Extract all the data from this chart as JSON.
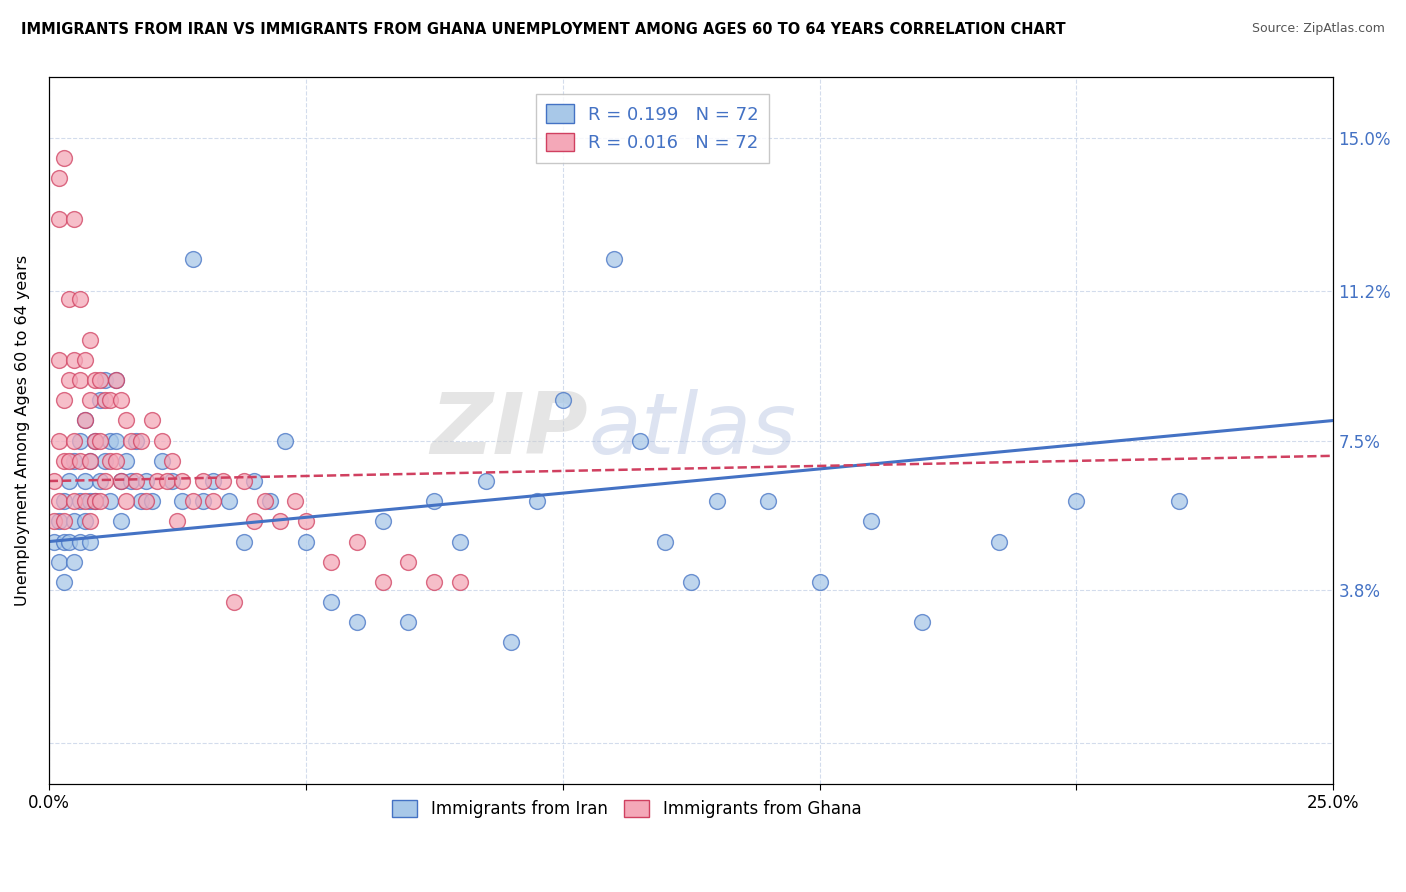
{
  "title": "IMMIGRANTS FROM IRAN VS IMMIGRANTS FROM GHANA UNEMPLOYMENT AMONG AGES 60 TO 64 YEARS CORRELATION CHART",
  "source": "Source: ZipAtlas.com",
  "ylabel": "Unemployment Among Ages 60 to 64 years",
  "xlim": [
    0.0,
    0.25
  ],
  "ylim": [
    -0.01,
    0.165
  ],
  "ytick_positions": [
    0.0,
    0.038,
    0.075,
    0.112,
    0.15
  ],
  "yticklabels": [
    "",
    "3.8%",
    "7.5%",
    "11.2%",
    "15.0%"
  ],
  "color_iran": "#a8c8e8",
  "color_ghana": "#f4a8b8",
  "color_iran_edge": "#4472c4",
  "color_ghana_edge": "#d04060",
  "color_iran_line": "#4472c4",
  "color_ghana_line": "#d04060",
  "watermark": "ZIPatlas",
  "iran_x": [
    0.001,
    0.002,
    0.002,
    0.003,
    0.003,
    0.003,
    0.004,
    0.004,
    0.005,
    0.005,
    0.005,
    0.006,
    0.006,
    0.006,
    0.007,
    0.007,
    0.007,
    0.008,
    0.008,
    0.008,
    0.009,
    0.009,
    0.01,
    0.01,
    0.011,
    0.011,
    0.012,
    0.012,
    0.013,
    0.013,
    0.014,
    0.014,
    0.015,
    0.016,
    0.017,
    0.018,
    0.019,
    0.02,
    0.022,
    0.024,
    0.026,
    0.028,
    0.03,
    0.032,
    0.035,
    0.038,
    0.04,
    0.043,
    0.046,
    0.05,
    0.055,
    0.06,
    0.065,
    0.07,
    0.075,
    0.08,
    0.085,
    0.09,
    0.095,
    0.1,
    0.11,
    0.115,
    0.12,
    0.125,
    0.13,
    0.14,
    0.15,
    0.16,
    0.17,
    0.185,
    0.2,
    0.22
  ],
  "iran_y": [
    0.05,
    0.055,
    0.045,
    0.06,
    0.05,
    0.04,
    0.065,
    0.05,
    0.07,
    0.055,
    0.045,
    0.075,
    0.06,
    0.05,
    0.08,
    0.065,
    0.055,
    0.07,
    0.06,
    0.05,
    0.075,
    0.06,
    0.085,
    0.065,
    0.09,
    0.07,
    0.075,
    0.06,
    0.09,
    0.075,
    0.065,
    0.055,
    0.07,
    0.065,
    0.075,
    0.06,
    0.065,
    0.06,
    0.07,
    0.065,
    0.06,
    0.12,
    0.06,
    0.065,
    0.06,
    0.05,
    0.065,
    0.06,
    0.075,
    0.05,
    0.035,
    0.03,
    0.055,
    0.03,
    0.06,
    0.05,
    0.065,
    0.025,
    0.06,
    0.085,
    0.12,
    0.075,
    0.05,
    0.04,
    0.06,
    0.06,
    0.04,
    0.055,
    0.03,
    0.05,
    0.06,
    0.06
  ],
  "ghana_x": [
    0.001,
    0.001,
    0.002,
    0.002,
    0.002,
    0.002,
    0.002,
    0.003,
    0.003,
    0.003,
    0.003,
    0.004,
    0.004,
    0.004,
    0.005,
    0.005,
    0.005,
    0.005,
    0.006,
    0.006,
    0.006,
    0.007,
    0.007,
    0.007,
    0.008,
    0.008,
    0.008,
    0.008,
    0.009,
    0.009,
    0.009,
    0.01,
    0.01,
    0.01,
    0.011,
    0.011,
    0.012,
    0.012,
    0.013,
    0.013,
    0.014,
    0.014,
    0.015,
    0.015,
    0.016,
    0.017,
    0.018,
    0.019,
    0.02,
    0.021,
    0.022,
    0.023,
    0.024,
    0.025,
    0.026,
    0.028,
    0.03,
    0.032,
    0.034,
    0.036,
    0.038,
    0.04,
    0.042,
    0.045,
    0.048,
    0.05,
    0.055,
    0.06,
    0.065,
    0.07,
    0.075,
    0.08
  ],
  "ghana_y": [
    0.065,
    0.055,
    0.14,
    0.13,
    0.095,
    0.075,
    0.06,
    0.145,
    0.085,
    0.07,
    0.055,
    0.11,
    0.09,
    0.07,
    0.13,
    0.095,
    0.075,
    0.06,
    0.11,
    0.09,
    0.07,
    0.095,
    0.08,
    0.06,
    0.1,
    0.085,
    0.07,
    0.055,
    0.09,
    0.075,
    0.06,
    0.09,
    0.075,
    0.06,
    0.085,
    0.065,
    0.085,
    0.07,
    0.09,
    0.07,
    0.085,
    0.065,
    0.08,
    0.06,
    0.075,
    0.065,
    0.075,
    0.06,
    0.08,
    0.065,
    0.075,
    0.065,
    0.07,
    0.055,
    0.065,
    0.06,
    0.065,
    0.06,
    0.065,
    0.035,
    0.065,
    0.055,
    0.06,
    0.055,
    0.06,
    0.055,
    0.045,
    0.05,
    0.04,
    0.045,
    0.04,
    0.04
  ]
}
